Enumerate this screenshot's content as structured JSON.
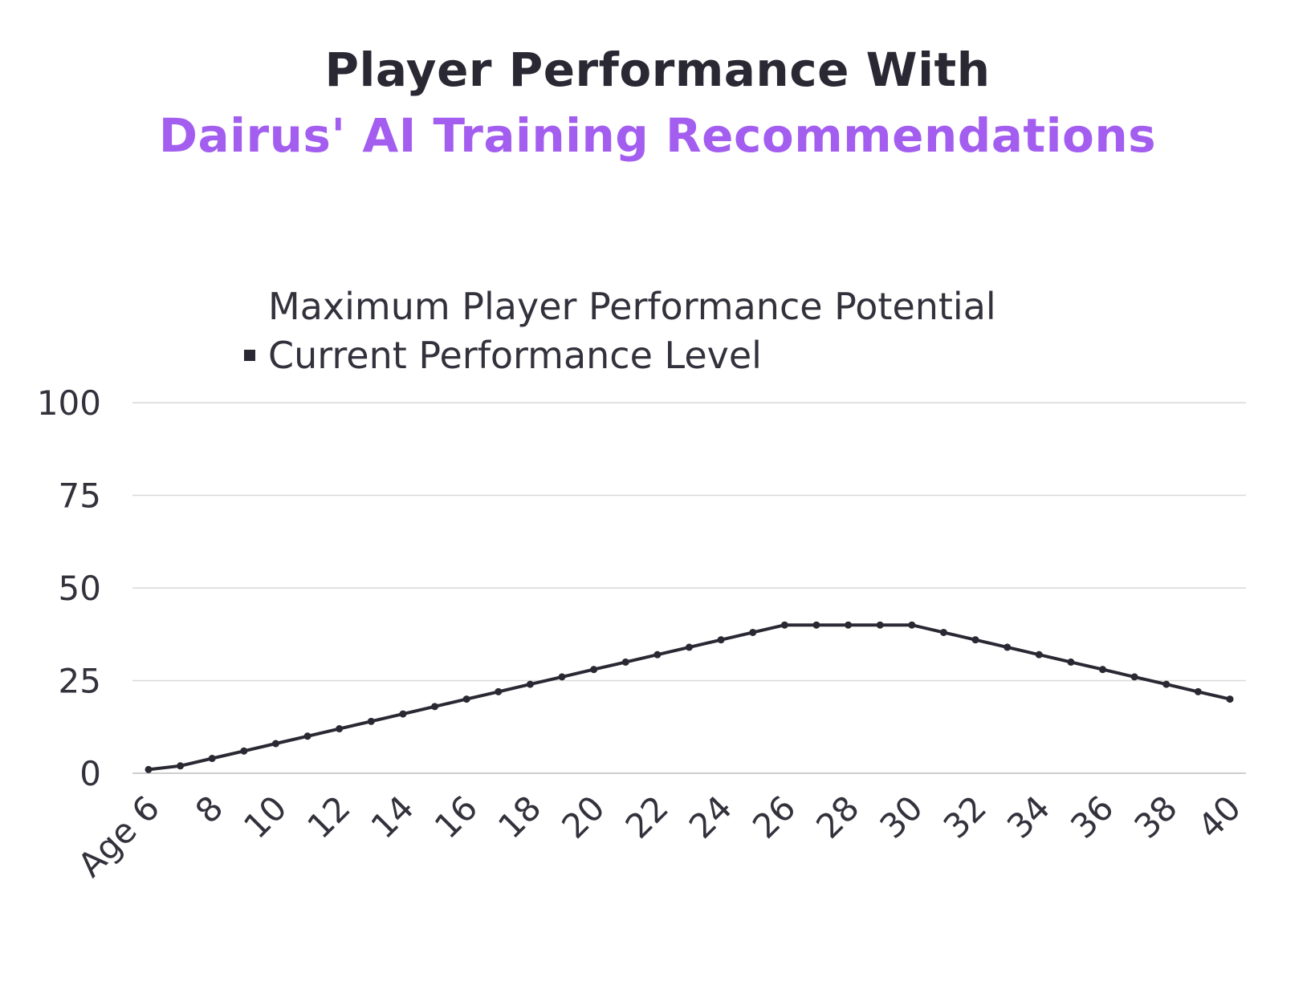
{
  "title": {
    "line1": "Player Performance With",
    "line2": "Dairus' AI Training Recommendations"
  },
  "colors": {
    "title_dark": "#2a2833",
    "title_accent": "#a35ef0",
    "line": "#2a2833",
    "grid": "#d9d9d9",
    "text": "#33313b"
  },
  "legend": [
    {
      "label": "Maximum Player Performance Potential",
      "marker": "none"
    },
    {
      "label": "Current Performance Level",
      "marker": "square"
    }
  ],
  "chart_data": {
    "type": "line",
    "x_tick_labels": [
      "Age 6",
      "8",
      "10",
      "12",
      "14",
      "16",
      "18",
      "20",
      "22",
      "24",
      "26",
      "28",
      "30",
      "32",
      "34",
      "36",
      "38",
      "40"
    ],
    "y_ticks": [
      0,
      25,
      50,
      75,
      100
    ],
    "ylim": [
      0,
      100
    ],
    "xlim": [
      6,
      40
    ],
    "grid": true,
    "legend_position": "top",
    "series": [
      {
        "name": "Maximum Player Performance Potential",
        "x": [],
        "y": []
      },
      {
        "name": "Current Performance Level",
        "x": [
          6,
          7,
          8,
          9,
          10,
          11,
          12,
          13,
          14,
          15,
          16,
          17,
          18,
          19,
          20,
          21,
          22,
          23,
          24,
          25,
          26,
          27,
          28,
          29,
          30,
          31,
          32,
          33,
          34,
          35,
          36,
          37,
          38,
          39,
          40
        ],
        "y": [
          1,
          2,
          4,
          6,
          8,
          10,
          12,
          14,
          16,
          18,
          20,
          22,
          24,
          26,
          28,
          30,
          32,
          34,
          36,
          38,
          40,
          40,
          40,
          40,
          40,
          38,
          36,
          34,
          32,
          30,
          28,
          26,
          24,
          22,
          20
        ]
      }
    ]
  }
}
